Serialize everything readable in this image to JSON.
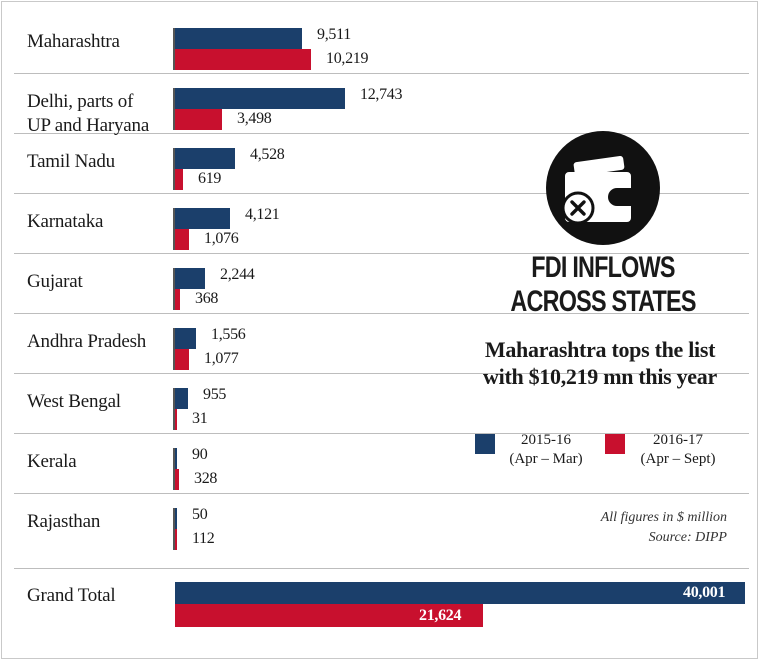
{
  "colors": {
    "series_2015": "#1b3f6b",
    "series_2016": "#c8102e",
    "axis": "#555555",
    "divider": "#bdbdbd"
  },
  "header": {
    "title_line1": "FDI INFLOWS",
    "title_line2": "ACROSS STATES",
    "subtitle_line1": "Maharashtra tops the list",
    "subtitle_line2": "with $10,219 mn this year"
  },
  "legend": [
    {
      "line1": "2015-16",
      "line2": "(Apr – Mar)",
      "color": "#1b3f6b"
    },
    {
      "line1": "2016-17",
      "line2": "(Apr – Sept)",
      "color": "#c8102e"
    }
  ],
  "notes": {
    "units": "All figures in $ million",
    "source": "Source: DIPP"
  },
  "icon": "wallet-icon",
  "chart_data": {
    "type": "bar",
    "orientation": "horizontal",
    "units": "$ million",
    "series": [
      {
        "name": "2015-16 (Apr – Mar)",
        "values": [
          9511,
          12743,
          4528,
          4121,
          2244,
          1556,
          955,
          90,
          50,
          40001
        ]
      },
      {
        "name": "2016-17 (Apr – Sept)",
        "values": [
          10219,
          3498,
          619,
          1076,
          368,
          1077,
          31,
          328,
          112,
          21624
        ]
      }
    ],
    "categories": [
      "Maharashtra",
      "Delhi, parts of UP and Haryana",
      "Tamil Nadu",
      "Karnataka",
      "Gujarat",
      "Andhra Pradesh",
      "West Bengal",
      "Kerala",
      "Rajasthan",
      "Grand Total"
    ],
    "rows": [
      {
        "line1": "Maharashtra",
        "line2": "",
        "a_label": "9,511",
        "b_label": "10,219"
      },
      {
        "line1": "Delhi, parts of",
        "line2": "UP and Haryana",
        "a_label": "12,743",
        "b_label": "3,498"
      },
      {
        "line1": "Tamil Nadu",
        "line2": "",
        "a_label": "4,528",
        "b_label": "619"
      },
      {
        "line1": "Karnataka",
        "line2": "",
        "a_label": "4,121",
        "b_label": "1,076"
      },
      {
        "line1": "Gujarat",
        "line2": "",
        "a_label": "2,244",
        "b_label": "368"
      },
      {
        "line1": "Andhra Pradesh",
        "line2": "",
        "a_label": "1,556",
        "b_label": "1,077"
      },
      {
        "line1": "West Bengal",
        "line2": "",
        "a_label": "955",
        "b_label": "31"
      },
      {
        "line1": "Kerala",
        "line2": "",
        "a_label": "90",
        "b_label": "328"
      },
      {
        "line1": "Rajasthan",
        "line2": "",
        "a_label": "50",
        "b_label": "112"
      }
    ],
    "total": {
      "label": "Grand Total",
      "a_label": "40,001",
      "b_label": "21,624"
    }
  }
}
